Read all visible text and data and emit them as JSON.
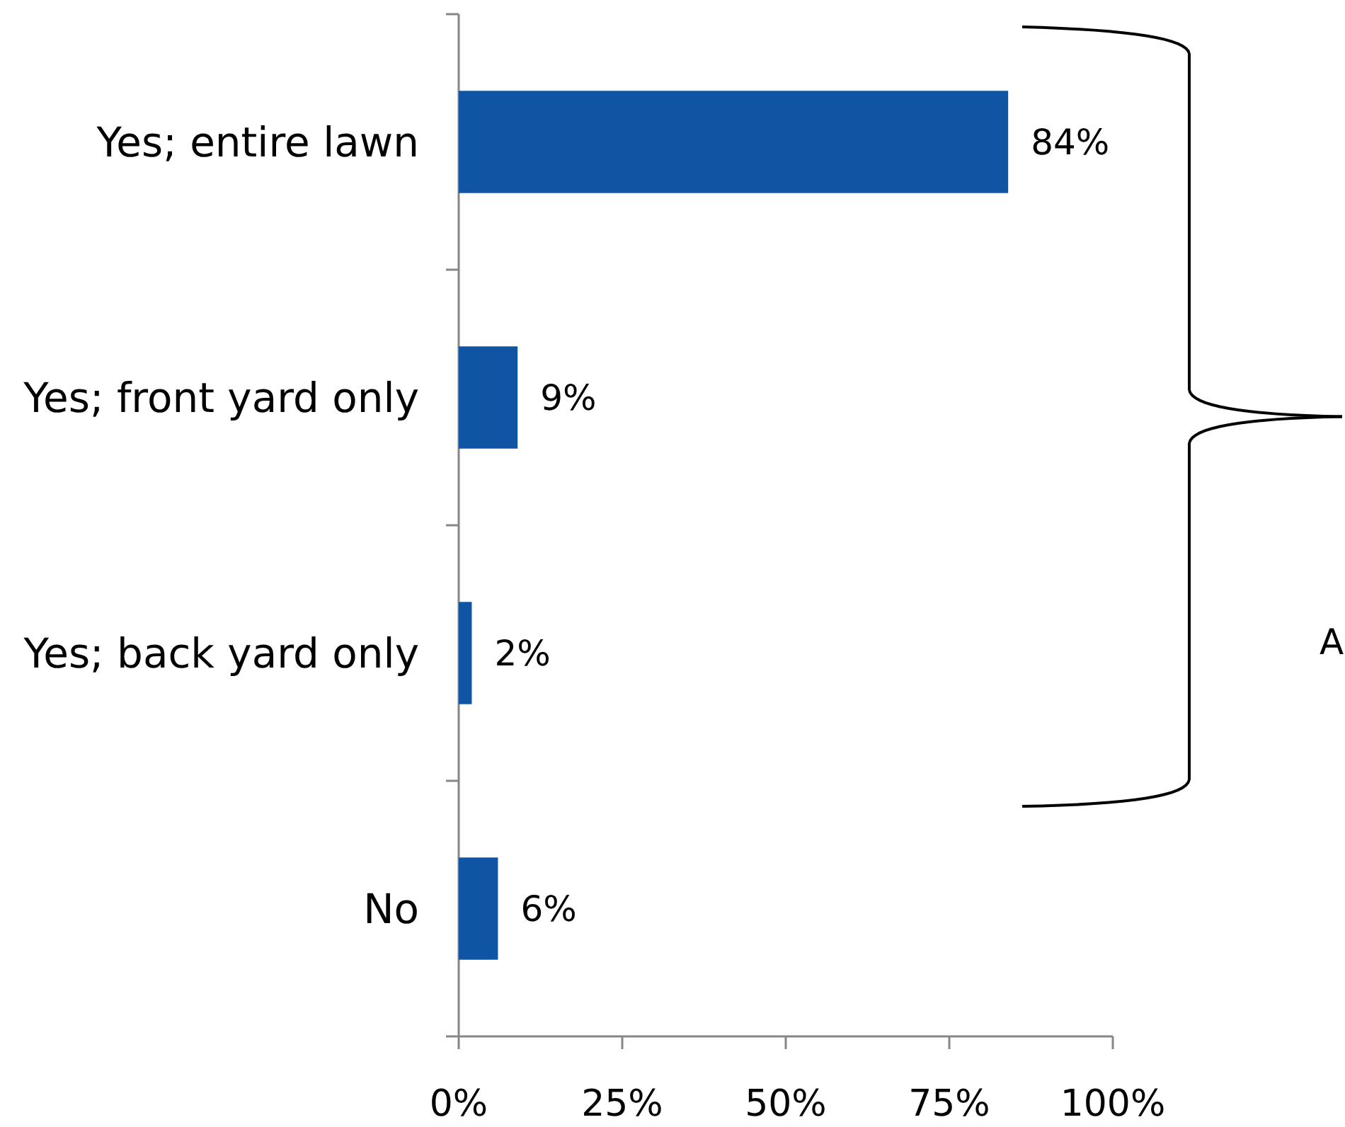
{
  "chart_data": {
    "type": "bar",
    "orientation": "horizontal",
    "categories": [
      "Yes; entire lawn",
      "Yes; front yard only",
      "Yes; back yard only",
      "No"
    ],
    "values": [
      84,
      9,
      2,
      6
    ],
    "color": "#0f55a3",
    "value_labels": [
      "84%",
      "9%",
      "2%",
      "6%"
    ],
    "xlim": [
      0,
      100
    ],
    "xticks": [
      {
        "value": 0,
        "label": "0%"
      },
      {
        "value": 25,
        "label": "25%"
      },
      {
        "value": 50,
        "label": "50%"
      },
      {
        "value": 75,
        "label": "75%"
      },
      {
        "value": 100,
        "label": "100%"
      }
    ],
    "annotations": [
      "A"
    ]
  }
}
